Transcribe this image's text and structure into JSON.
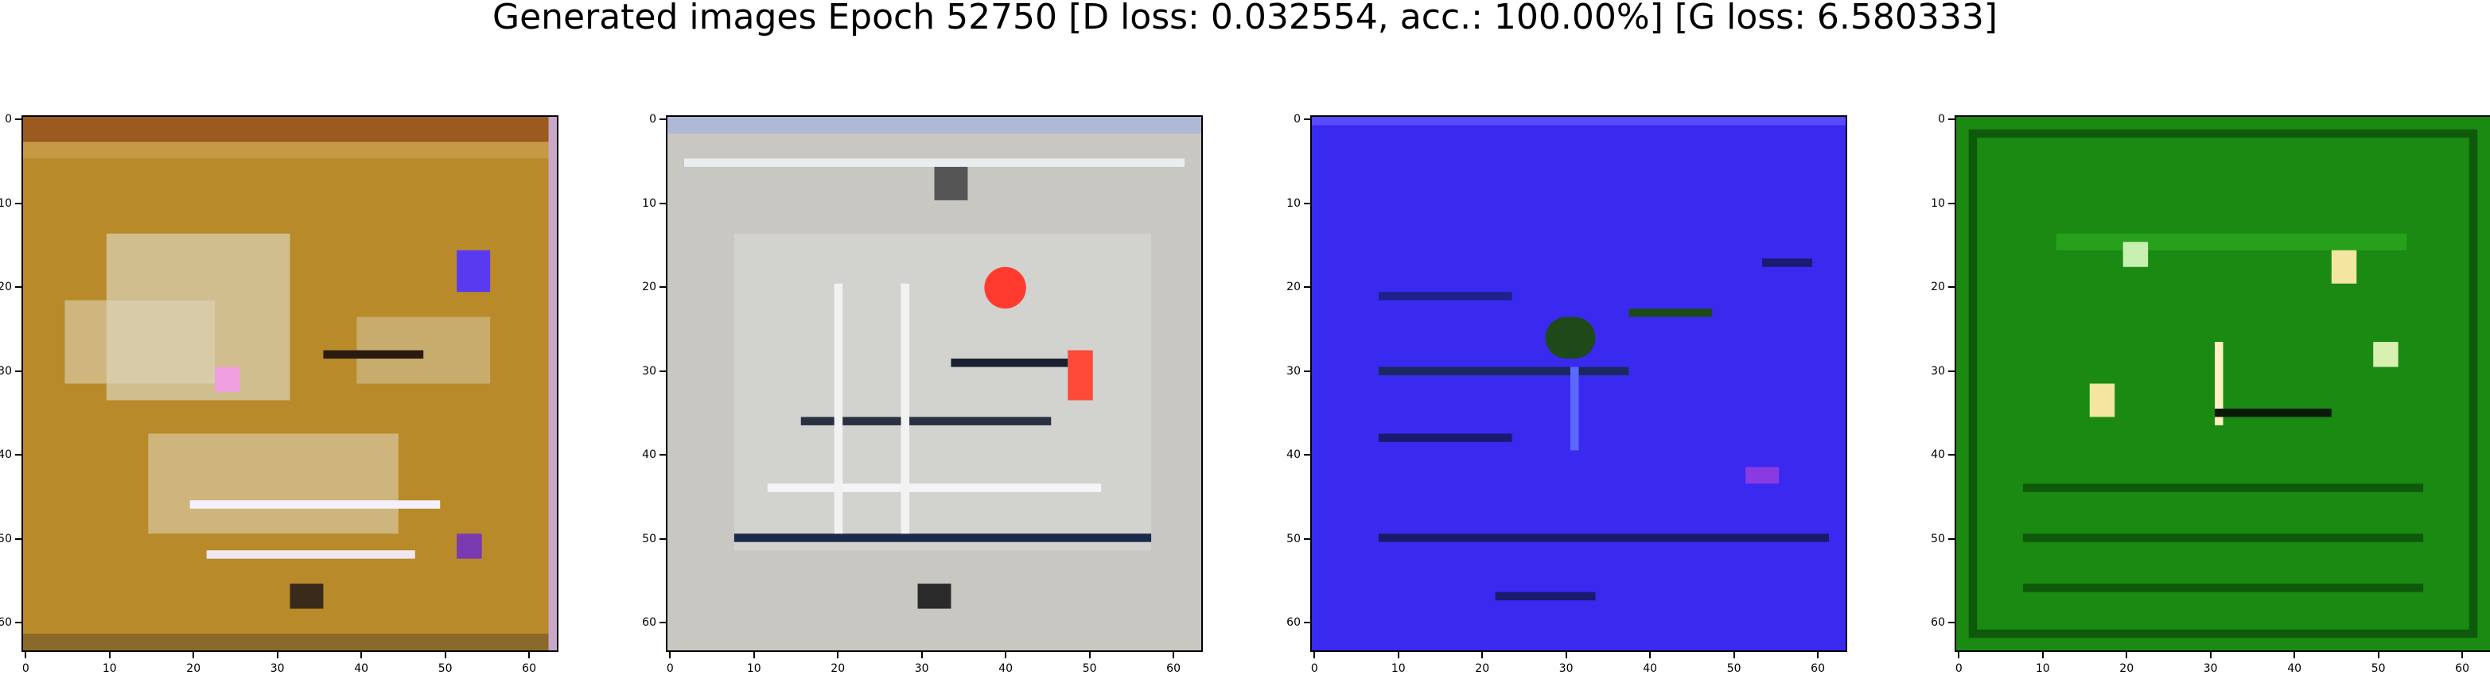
{
  "figure": {
    "title": "Generated images Epoch 52750 [D loss: 0.032554, acc.: 100.00%] [G loss: 6.580333]"
  },
  "axis_ticks": {
    "x": [
      "0",
      "10",
      "20",
      "30",
      "40",
      "50",
      "60"
    ],
    "y": [
      "0",
      "10",
      "20",
      "30",
      "40",
      "50",
      "60"
    ],
    "x_values": [
      0,
      10,
      20,
      30,
      40,
      50,
      60
    ],
    "y_values": [
      0,
      10,
      20,
      30,
      40,
      50,
      60
    ],
    "range": [
      -0.5,
      63.5
    ]
  },
  "panels": [
    {
      "name": "image-panel-1",
      "dominant_color": "#b88a2a",
      "accent": "#e6e0cf"
    },
    {
      "name": "image-panel-2",
      "dominant_color": "#c9c7c2",
      "accent": "#ff3b2f"
    },
    {
      "name": "image-panel-3",
      "dominant_color": "#3a2af0",
      "accent": "#1e4a1a"
    },
    {
      "name": "image-panel-4",
      "dominant_color": "#1a8a12",
      "accent": "#f2e6a0"
    }
  ]
}
